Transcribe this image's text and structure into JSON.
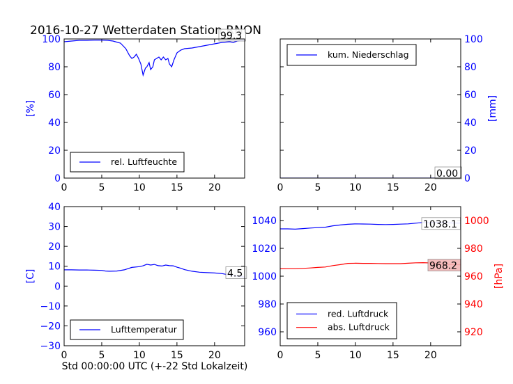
{
  "title": "2016-10-27 Wetterdaten Station RNON",
  "xlabel_bottom": "Std 00:00:00 UTC (+-22 Std Lokalzeit)",
  "colors": {
    "blue": "#0000ff",
    "red": "#ff0000",
    "black": "#000000",
    "pressure_box_fill": "#f4b8b8"
  },
  "chart_data": [
    {
      "id": "humidity",
      "type": "line",
      "ylabel": "[%]",
      "xlim": [
        0,
        24
      ],
      "ylim": [
        0,
        100
      ],
      "xticks": [
        0,
        5,
        10,
        15,
        20
      ],
      "yticks": [
        0,
        20,
        40,
        60,
        80,
        100
      ],
      "legend_position": "lower-left",
      "series": [
        {
          "name": "rel. Luftfeuchte",
          "color": "#0000ff",
          "x": [
            0,
            1,
            2,
            3,
            4,
            5,
            5.8,
            6.5,
            7.5,
            8.2,
            8.7,
            9.0,
            9.3,
            9.6,
            9.9,
            10.2,
            10.5,
            10.8,
            11.0,
            11.3,
            11.5,
            11.8,
            12.0,
            12.3,
            12.6,
            12.9,
            13.2,
            13.5,
            13.8,
            14.0,
            14.3,
            14.6,
            15.0,
            15.5,
            16.0,
            17.0,
            18.0,
            19.0,
            20.0,
            21.0,
            22.0,
            22.5,
            23.0,
            23.5,
            24.0
          ],
          "y": [
            98,
            98.5,
            99,
            99,
            99.2,
            99.2,
            99,
            98.5,
            97,
            93,
            88,
            86,
            87,
            89,
            86,
            82,
            74,
            79,
            80,
            83,
            78,
            80,
            85,
            86,
            87,
            85,
            87,
            85,
            86,
            82,
            80,
            85,
            90,
            92,
            93,
            93.5,
            94.5,
            95.5,
            96.5,
            97.5,
            98,
            97.5,
            98.5,
            99,
            99.3
          ]
        }
      ],
      "annotation": "99.3"
    },
    {
      "id": "precipitation",
      "type": "line",
      "ylabel": "[mm]",
      "xlim": [
        0,
        24
      ],
      "ylim": [
        0,
        100
      ],
      "xticks": [
        0,
        5,
        10,
        15,
        20
      ],
      "yticks": [
        0,
        20,
        40,
        60,
        80,
        100
      ],
      "y_axis_side": "right",
      "legend_position": "upper-left",
      "series": [
        {
          "name": "kum. Niederschlag",
          "color": "#0000ff",
          "x": [
            0,
            24
          ],
          "y": [
            0,
            0
          ]
        }
      ],
      "annotation": "0.00"
    },
    {
      "id": "temperature",
      "type": "line",
      "ylabel": "[C]",
      "xlim": [
        0,
        24
      ],
      "ylim": [
        -30,
        40
      ],
      "xticks": [
        0,
        5,
        10,
        15,
        20
      ],
      "yticks": [
        -30,
        -20,
        -10,
        0,
        10,
        20,
        30,
        40
      ],
      "legend_position": "lower-left",
      "series": [
        {
          "name": "Lufttemperatur",
          "color": "#0000ff",
          "x": [
            0,
            1,
            2,
            3,
            4,
            5,
            5.5,
            6,
            7,
            8,
            9,
            10,
            10.5,
            11,
            11.5,
            12,
            12.5,
            13,
            13.5,
            14,
            14.5,
            15,
            15.5,
            16,
            17,
            18,
            19,
            20,
            21,
            22,
            23,
            24
          ],
          "y": [
            8.2,
            8.2,
            8.1,
            8.1,
            8.0,
            7.9,
            7.6,
            7.5,
            7.6,
            8.2,
            9.4,
            9.8,
            10.2,
            11.0,
            10.6,
            10.9,
            10.3,
            10.1,
            10.6,
            10.3,
            10.2,
            9.5,
            9.0,
            8.3,
            7.5,
            7.0,
            6.8,
            6.6,
            6.3,
            5.6,
            5.0,
            4.5
          ]
        }
      ],
      "annotation": "4.5"
    },
    {
      "id": "pressure",
      "type": "line",
      "xlim": [
        0,
        24
      ],
      "ylim_left": [
        950,
        1050
      ],
      "ylim_right": [
        910,
        1010
      ],
      "xticks": [
        0,
        5,
        10,
        15,
        20
      ],
      "yticks_left": [
        960,
        980,
        1000,
        1020,
        1040
      ],
      "yticks_right": [
        920,
        940,
        960,
        980,
        1000
      ],
      "ylabel_right": "[hPa]",
      "legend_position": "lower-left",
      "series": [
        {
          "name": "red. Luftdruck",
          "color": "#0000ff",
          "axis": "left",
          "x": [
            0,
            1,
            2,
            3,
            4,
            5,
            6,
            7,
            8,
            9,
            10,
            11,
            12,
            13,
            14,
            15,
            16,
            17,
            18,
            19,
            20,
            21,
            22,
            23,
            24
          ],
          "y": [
            1034,
            1034,
            1033.8,
            1034.2,
            1034.6,
            1034.9,
            1035.2,
            1036.2,
            1036.8,
            1037.3,
            1037.6,
            1037.5,
            1037.4,
            1037.2,
            1037.1,
            1037.2,
            1037.4,
            1037.6,
            1038.1,
            1038.6,
            1038.6,
            1038.6,
            1038.4,
            1038.2,
            1038.1
          ]
        },
        {
          "name": "abs. Luftdruck",
          "color": "#ff0000",
          "axis": "right",
          "x": [
            0,
            1,
            2,
            3,
            4,
            5,
            6,
            7,
            8,
            9,
            10,
            11,
            12,
            13,
            14,
            15,
            16,
            17,
            18,
            19,
            20,
            21,
            22,
            23,
            24
          ],
          "y": [
            965.3,
            965.4,
            965.4,
            965.6,
            965.9,
            966.3,
            966.6,
            967.6,
            968.3,
            969.2,
            969.3,
            969.2,
            969.2,
            969.1,
            969.0,
            969.0,
            969.0,
            969.3,
            969.6,
            969.7,
            969.5,
            968.8,
            968.4,
            968.3,
            968.2
          ]
        }
      ],
      "annotation_left": "1038.1",
      "annotation_right": "968.2"
    }
  ]
}
